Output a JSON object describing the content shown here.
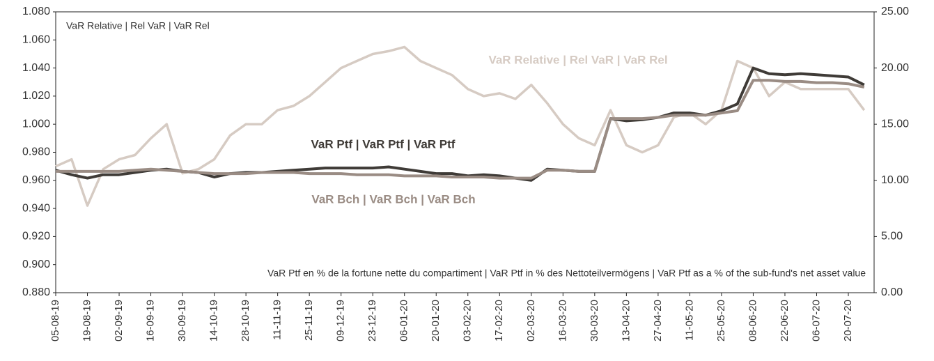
{
  "chart_data": {
    "type": "line",
    "axis_title": "VaR Relative | Rel VaR | VaR Rel",
    "note": "VaR Ptf en % de la fortune nette du compartiment | VaR Ptf in % des Nettoteilvermögens | VaR Ptf as a % of the sub-fund's net asset value",
    "categories": [
      "05-08-19",
      null,
      "19-08-19",
      null,
      "02-09-19",
      null,
      "16-09-19",
      null,
      "30-09-19",
      null,
      "14-10-19",
      null,
      "28-10-19",
      null,
      "11-11-19",
      null,
      "25-11-19",
      null,
      "09-12-19",
      null,
      "23-12-19",
      null,
      "06-01-20",
      null,
      "20-01-20",
      null,
      "03-02-20",
      null,
      "17-02-20",
      null,
      "02-03-20",
      null,
      "16-03-20",
      null,
      "30-03-20",
      null,
      "13-04-20",
      null,
      "27-04-20",
      null,
      "11-05-20",
      null,
      "25-05-20",
      null,
      "08-06-20",
      null,
      "22-06-20",
      null,
      "06-07-20",
      null,
      "20-07-20",
      null
    ],
    "series": [
      {
        "name": "VaR Relative | Rel VaR | VaR Rel",
        "color": "#d6cbc3",
        "axis": "y",
        "values": [
          0.97,
          0.975,
          0.942,
          0.968,
          0.975,
          0.978,
          0.99,
          1.0,
          0.965,
          0.968,
          0.975,
          0.992,
          1.0,
          1.0,
          1.01,
          1.013,
          1.02,
          1.03,
          1.04,
          1.045,
          1.05,
          1.052,
          1.055,
          1.045,
          1.04,
          1.035,
          1.025,
          1.02,
          1.022,
          1.018,
          1.028,
          1.015,
          1.0,
          0.99,
          0.985,
          1.01,
          0.985,
          0.98,
          0.985,
          1.005,
          1.008,
          1.0,
          1.01,
          1.045,
          1.04,
          1.02,
          1.03,
          1.025,
          1.025,
          1.025,
          1.025,
          1.01
        ]
      },
      {
        "name": "VaR Ptf | VaR Ptf | VaR Ptf",
        "color": "#3f3b37",
        "axis": "y2",
        "values": [
          10.9,
          10.5,
          10.2,
          10.5,
          10.5,
          10.7,
          10.9,
          11.0,
          10.8,
          10.7,
          10.3,
          10.6,
          10.7,
          10.7,
          10.8,
          10.9,
          11.0,
          11.1,
          11.1,
          11.1,
          11.1,
          11.2,
          11.0,
          10.8,
          10.6,
          10.6,
          10.4,
          10.5,
          10.4,
          10.2,
          10.0,
          11.0,
          10.9,
          10.8,
          10.8,
          15.5,
          15.3,
          15.4,
          15.6,
          16.0,
          16.0,
          15.8,
          16.2,
          16.8,
          20.0,
          19.5,
          19.4,
          19.5,
          19.4,
          19.3,
          19.2,
          18.5
        ]
      },
      {
        "name": "VaR Bch | VaR Bch | VaR Bch",
        "color": "#9a8c84",
        "axis": "y2",
        "values": [
          10.8,
          10.8,
          10.8,
          10.8,
          10.8,
          10.9,
          11.0,
          10.9,
          10.8,
          10.7,
          10.6,
          10.6,
          10.6,
          10.7,
          10.7,
          10.7,
          10.6,
          10.6,
          10.6,
          10.5,
          10.5,
          10.5,
          10.4,
          10.4,
          10.4,
          10.3,
          10.3,
          10.3,
          10.2,
          10.2,
          10.2,
          10.9,
          10.9,
          10.8,
          10.8,
          15.5,
          15.5,
          15.5,
          15.6,
          15.8,
          15.8,
          15.8,
          16.0,
          16.2,
          18.9,
          18.9,
          18.8,
          18.8,
          18.7,
          18.7,
          18.6,
          18.3
        ]
      }
    ],
    "ylim": [
      0.88,
      1.08
    ],
    "yticks": [
      {
        "value": 0.88,
        "label": "0.880"
      },
      {
        "value": 0.9,
        "label": "0.900"
      },
      {
        "value": 0.92,
        "label": "0.920"
      },
      {
        "value": 0.94,
        "label": "0.940"
      },
      {
        "value": 0.96,
        "label": "0.960"
      },
      {
        "value": 0.98,
        "label": "0.980"
      },
      {
        "value": 1.0,
        "label": "1.000"
      },
      {
        "value": 1.02,
        "label": "1.020"
      },
      {
        "value": 1.04,
        "label": "1.040"
      },
      {
        "value": 1.06,
        "label": "1.060"
      },
      {
        "value": 1.08,
        "label": "1.080"
      }
    ],
    "y2lim": [
      0,
      25
    ],
    "y2ticks": [
      {
        "value": 0,
        "label": "0.00"
      },
      {
        "value": 5,
        "label": "5.00"
      },
      {
        "value": 10,
        "label": "10.00"
      },
      {
        "value": 15,
        "label": "15.00"
      },
      {
        "value": 20,
        "label": "20.00"
      },
      {
        "value": 25,
        "label": "25.00"
      }
    ],
    "grid": false
  }
}
